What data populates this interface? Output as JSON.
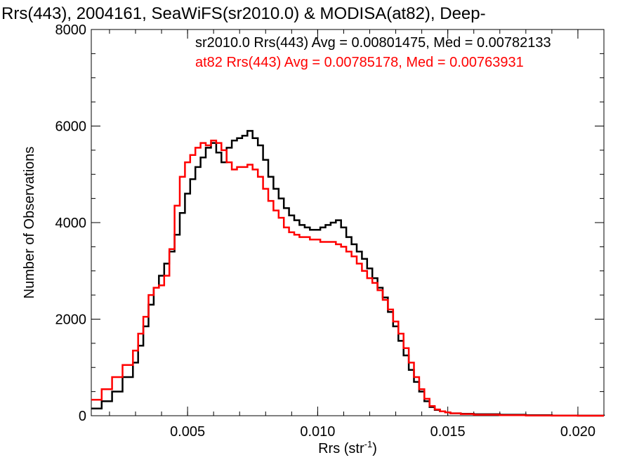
{
  "chart_data": {
    "type": "line",
    "title": "Rrs(443), 2004161, SeaWiFS(sr2010.0) & MODISA(at82), Deep-",
    "xlabel": "Rrs (str",
    "xlabel_sup": "-1",
    "xlabel_close": ")",
    "ylabel": "Number of Observations",
    "xlim": [
      0.0013,
      0.021
    ],
    "ylim": [
      0,
      8000
    ],
    "xticks": [
      0.005,
      0.01,
      0.015,
      0.02
    ],
    "xtick_labels": [
      "0.005",
      "0.010",
      "0.015",
      "0.020"
    ],
    "xminor_step": 0.001,
    "yticks": [
      0,
      2000,
      4000,
      6000,
      8000
    ],
    "ytick_labels": [
      "0",
      "2000",
      "4000",
      "6000",
      "8000"
    ],
    "yminor_step": 500,
    "grid": false,
    "step_style": "histogram",
    "annotations": [
      {
        "text": "sr2010.0 Rrs(443) Avg = 0.00801475, Med = 0.00782133",
        "color": "#000000"
      },
      {
        "text": "at82 Rrs(443) Avg = 0.00785178, Med = 0.00763931",
        "color": "#ff0000"
      }
    ],
    "series": [
      {
        "color": "#000000",
        "x": [
          0.0013,
          0.0017,
          0.0021,
          0.0025,
          0.0029,
          0.0031,
          0.0033,
          0.0035,
          0.0037,
          0.0039,
          0.0041,
          0.0043,
          0.0045,
          0.0047,
          0.0049,
          0.0051,
          0.0053,
          0.0055,
          0.0057,
          0.0059,
          0.0061,
          0.0063,
          0.0065,
          0.0067,
          0.0069,
          0.0071,
          0.0073,
          0.0075,
          0.0077,
          0.0079,
          0.0081,
          0.0083,
          0.0085,
          0.0087,
          0.0089,
          0.0091,
          0.0093,
          0.0095,
          0.0097,
          0.0099,
          0.0101,
          0.0103,
          0.0105,
          0.0107,
          0.0109,
          0.0111,
          0.0113,
          0.0115,
          0.0117,
          0.0119,
          0.0121,
          0.0123,
          0.0125,
          0.0127,
          0.0129,
          0.0131,
          0.0133,
          0.0135,
          0.0137,
          0.0139,
          0.0141,
          0.0143,
          0.0145,
          0.0147,
          0.0149,
          0.0151,
          0.0155,
          0.016,
          0.017,
          0.018,
          0.019,
          0.02,
          0.021
        ],
        "values": [
          150,
          300,
          500,
          800,
          1100,
          1450,
          1850,
          2300,
          2650,
          2900,
          3150,
          3400,
          3750,
          4200,
          4600,
          4900,
          5150,
          5350,
          5550,
          5650,
          5450,
          5250,
          5550,
          5700,
          5750,
          5800,
          5900,
          5750,
          5600,
          5300,
          4950,
          4700,
          4500,
          4300,
          4150,
          4050,
          3950,
          3900,
          3850,
          3850,
          3900,
          3950,
          4000,
          4050,
          3900,
          3700,
          3550,
          3400,
          3250,
          3050,
          2850,
          2650,
          2450,
          2150,
          1850,
          1550,
          1250,
          950,
          700,
          500,
          300,
          180,
          120,
          90,
          70,
          50,
          40,
          30,
          20,
          10,
          5,
          2,
          0
        ]
      },
      {
        "color": "#ff0000",
        "x": [
          0.0013,
          0.0017,
          0.0021,
          0.0025,
          0.0029,
          0.0031,
          0.0033,
          0.0035,
          0.0037,
          0.0039,
          0.0041,
          0.0043,
          0.0045,
          0.0047,
          0.0049,
          0.0051,
          0.0053,
          0.0055,
          0.0057,
          0.0059,
          0.0061,
          0.0063,
          0.0065,
          0.0067,
          0.0069,
          0.0071,
          0.0073,
          0.0075,
          0.0077,
          0.0079,
          0.0081,
          0.0083,
          0.0085,
          0.0087,
          0.0089,
          0.0091,
          0.0093,
          0.0095,
          0.0097,
          0.0099,
          0.0101,
          0.0103,
          0.0105,
          0.0107,
          0.0109,
          0.0111,
          0.0113,
          0.0115,
          0.0117,
          0.0119,
          0.0121,
          0.0123,
          0.0125,
          0.0127,
          0.0129,
          0.0131,
          0.0133,
          0.0135,
          0.0137,
          0.0139,
          0.0141,
          0.0143,
          0.0145,
          0.0147,
          0.0149,
          0.0151,
          0.0155,
          0.016,
          0.017,
          0.018,
          0.019,
          0.02,
          0.021
        ],
        "values": [
          330,
          550,
          800,
          1050,
          1350,
          1700,
          2050,
          2500,
          2650,
          2700,
          2900,
          3450,
          4350,
          4950,
          5250,
          5400,
          5550,
          5650,
          5600,
          5700,
          5650,
          5500,
          5250,
          5100,
          5150,
          5150,
          5200,
          5100,
          4950,
          4700,
          4450,
          4250,
          4100,
          3900,
          3800,
          3750,
          3700,
          3700,
          3650,
          3650,
          3600,
          3600,
          3600,
          3550,
          3500,
          3400,
          3300,
          3150,
          3000,
          2850,
          2750,
          2600,
          2400,
          2200,
          1950,
          1700,
          1400,
          1100,
          800,
          550,
          350,
          200,
          130,
          90,
          70,
          50,
          35,
          20,
          10,
          5,
          2,
          0,
          0
        ]
      }
    ]
  }
}
